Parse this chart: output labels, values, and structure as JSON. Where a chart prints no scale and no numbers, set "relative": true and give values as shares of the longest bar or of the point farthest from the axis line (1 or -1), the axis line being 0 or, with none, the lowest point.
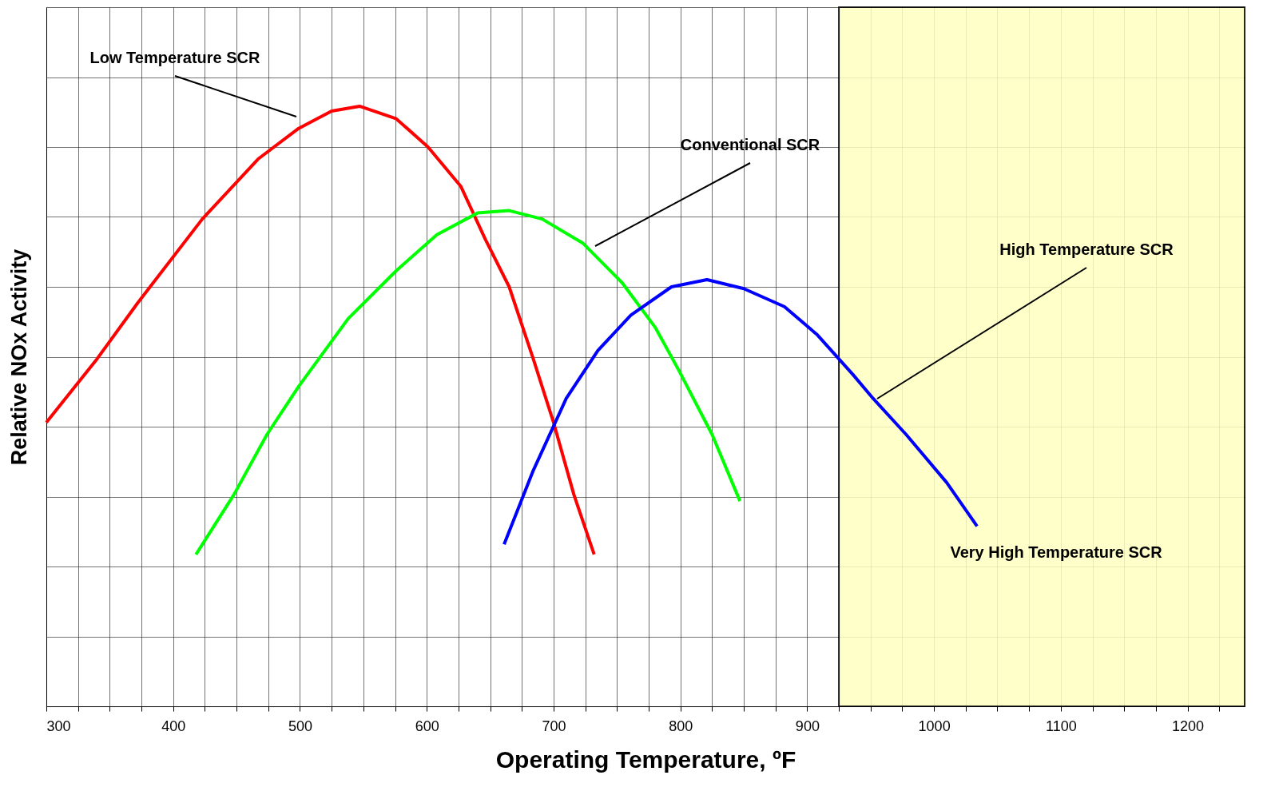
{
  "chart_data": {
    "type": "line",
    "relative": true,
    "xlabel": "Operating Temperature, ºF",
    "ylabel": "Relative NOx Activity",
    "xlim": [
      300,
      1245
    ],
    "xticks": [
      300,
      {
        "value": 325,
        "label": null
      },
      {
        "value": 350,
        "label": null
      },
      {
        "value": 375,
        "label": null
      },
      400,
      {
        "value": 425,
        "label": null
      },
      {
        "value": 450,
        "label": null
      },
      {
        "value": 475,
        "label": null
      },
      500,
      {
        "value": 525,
        "label": null
      },
      {
        "value": 550,
        "label": null
      },
      {
        "value": 575,
        "label": null
      },
      600,
      {
        "value": 625,
        "label": null
      },
      {
        "value": 650,
        "label": null
      },
      {
        "value": 675,
        "label": null
      },
      700,
      {
        "value": 725,
        "label": null
      },
      {
        "value": 750,
        "label": null
      },
      {
        "value": 775,
        "label": null
      },
      800,
      {
        "value": 825,
        "label": null
      },
      {
        "value": 850,
        "label": null
      },
      {
        "value": 875,
        "label": null
      },
      900,
      {
        "value": 925,
        "label": null
      },
      {
        "value": 950,
        "label": null
      },
      {
        "value": 975,
        "label": null
      },
      1000,
      {
        "value": 1025,
        "label": null
      },
      {
        "value": 1050,
        "label": null
      },
      {
        "value": 1075,
        "label": null
      },
      1100,
      {
        "value": 1125,
        "label": null
      },
      {
        "value": 1150,
        "label": null
      },
      {
        "value": 1175,
        "label": null
      },
      1200,
      {
        "value": 1225,
        "label": null
      }
    ],
    "grid": true,
    "marker": "none",
    "line_style": "solid",
    "series": [
      {
        "color": "#ff0000",
        "x": [
          300,
          340,
          372,
          423,
          467,
          499,
          525,
          547,
          576,
          601,
          627,
          646,
          665,
          684,
          700,
          716,
          732
        ],
        "values": [
          0.473,
          0.579,
          0.672,
          0.812,
          0.912,
          0.963,
          0.992,
          1.0,
          0.979,
          0.932,
          0.866,
          0.779,
          0.699,
          0.579,
          0.473,
          0.353,
          0.253
        ]
      },
      {
        "color": "#00ff00",
        "x": [
          418,
          448,
          474,
          499,
          538,
          576,
          608,
          640,
          665,
          691,
          723,
          754,
          780,
          799,
          825,
          847
        ],
        "values": [
          0.253,
          0.353,
          0.453,
          0.533,
          0.646,
          0.726,
          0.786,
          0.822,
          0.826,
          0.812,
          0.772,
          0.706,
          0.632,
          0.559,
          0.453,
          0.342
        ]
      },
      {
        "color": "#0000ff",
        "x": [
          661,
          684,
          710,
          735,
          761,
          793,
          821,
          850,
          882,
          908,
          936,
          952,
          978,
          1010,
          1034
        ],
        "values": [
          0.27,
          0.393,
          0.513,
          0.593,
          0.652,
          0.699,
          0.711,
          0.696,
          0.666,
          0.619,
          0.553,
          0.513,
          0.453,
          0.373,
          0.3
        ]
      }
    ],
    "bands": [
      {
        "axis": "x",
        "from": 925,
        "to": 1245,
        "label": "Very High Temperature SCR",
        "color": "#ffffc0"
      }
    ],
    "annotations": [
      "Low Temperature SCR",
      "Conventional SCR",
      "High Temperature SCR"
    ]
  }
}
